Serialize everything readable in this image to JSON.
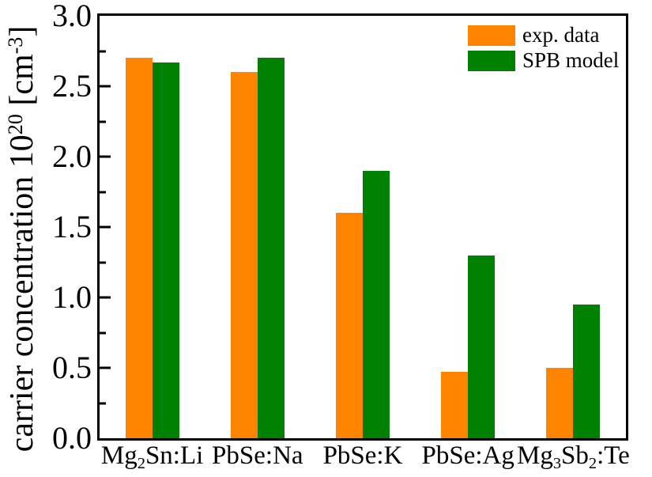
{
  "figure": {
    "background": "#ffffff",
    "axis_color": "#000000"
  },
  "chart_data": {
    "type": "bar",
    "title": "",
    "xlabel": "",
    "ylabel": "carrier concentration 10^20 [cm^-3]",
    "ylabel_segments": [
      {
        "t": "carrier concentration 10"
      },
      {
        "t": "20",
        "s": "sup"
      },
      {
        "t": " [cm"
      },
      {
        "t": "-3",
        "s": "sup"
      },
      {
        "t": "]"
      }
    ],
    "categories": [
      "Mg2Sn:Li",
      "PbSe:Na",
      "PbSe:K",
      "PbSe:Ag",
      "Mg3Sb2:Te"
    ],
    "categories_segments": [
      [
        {
          "t": "Mg"
        },
        {
          "t": "2",
          "s": "sub"
        },
        {
          "t": "Sn:Li"
        }
      ],
      [
        {
          "t": "PbSe:Na"
        }
      ],
      [
        {
          "t": "PbSe:K"
        }
      ],
      [
        {
          "t": "PbSe:Ag"
        }
      ],
      [
        {
          "t": "Mg"
        },
        {
          "t": "3",
          "s": "sub"
        },
        {
          "t": "Sb"
        },
        {
          "t": "2",
          "s": "sub"
        },
        {
          "t": ":Te"
        }
      ]
    ],
    "series": [
      {
        "name": "exp. data",
        "color": "#ff8400",
        "values": [
          2.7,
          2.6,
          1.6,
          0.47,
          0.5
        ]
      },
      {
        "name": "SPB model",
        "color": "#008000",
        "values": [
          2.67,
          2.7,
          1.9,
          1.3,
          0.95
        ]
      }
    ],
    "ylim": [
      0.0,
      3.0
    ],
    "yticks": [
      0.0,
      0.5,
      1.0,
      1.5,
      2.0,
      2.5,
      3.0
    ],
    "ytick_minor_step": 0.25,
    "grid": false,
    "legend_position": "top-right"
  }
}
